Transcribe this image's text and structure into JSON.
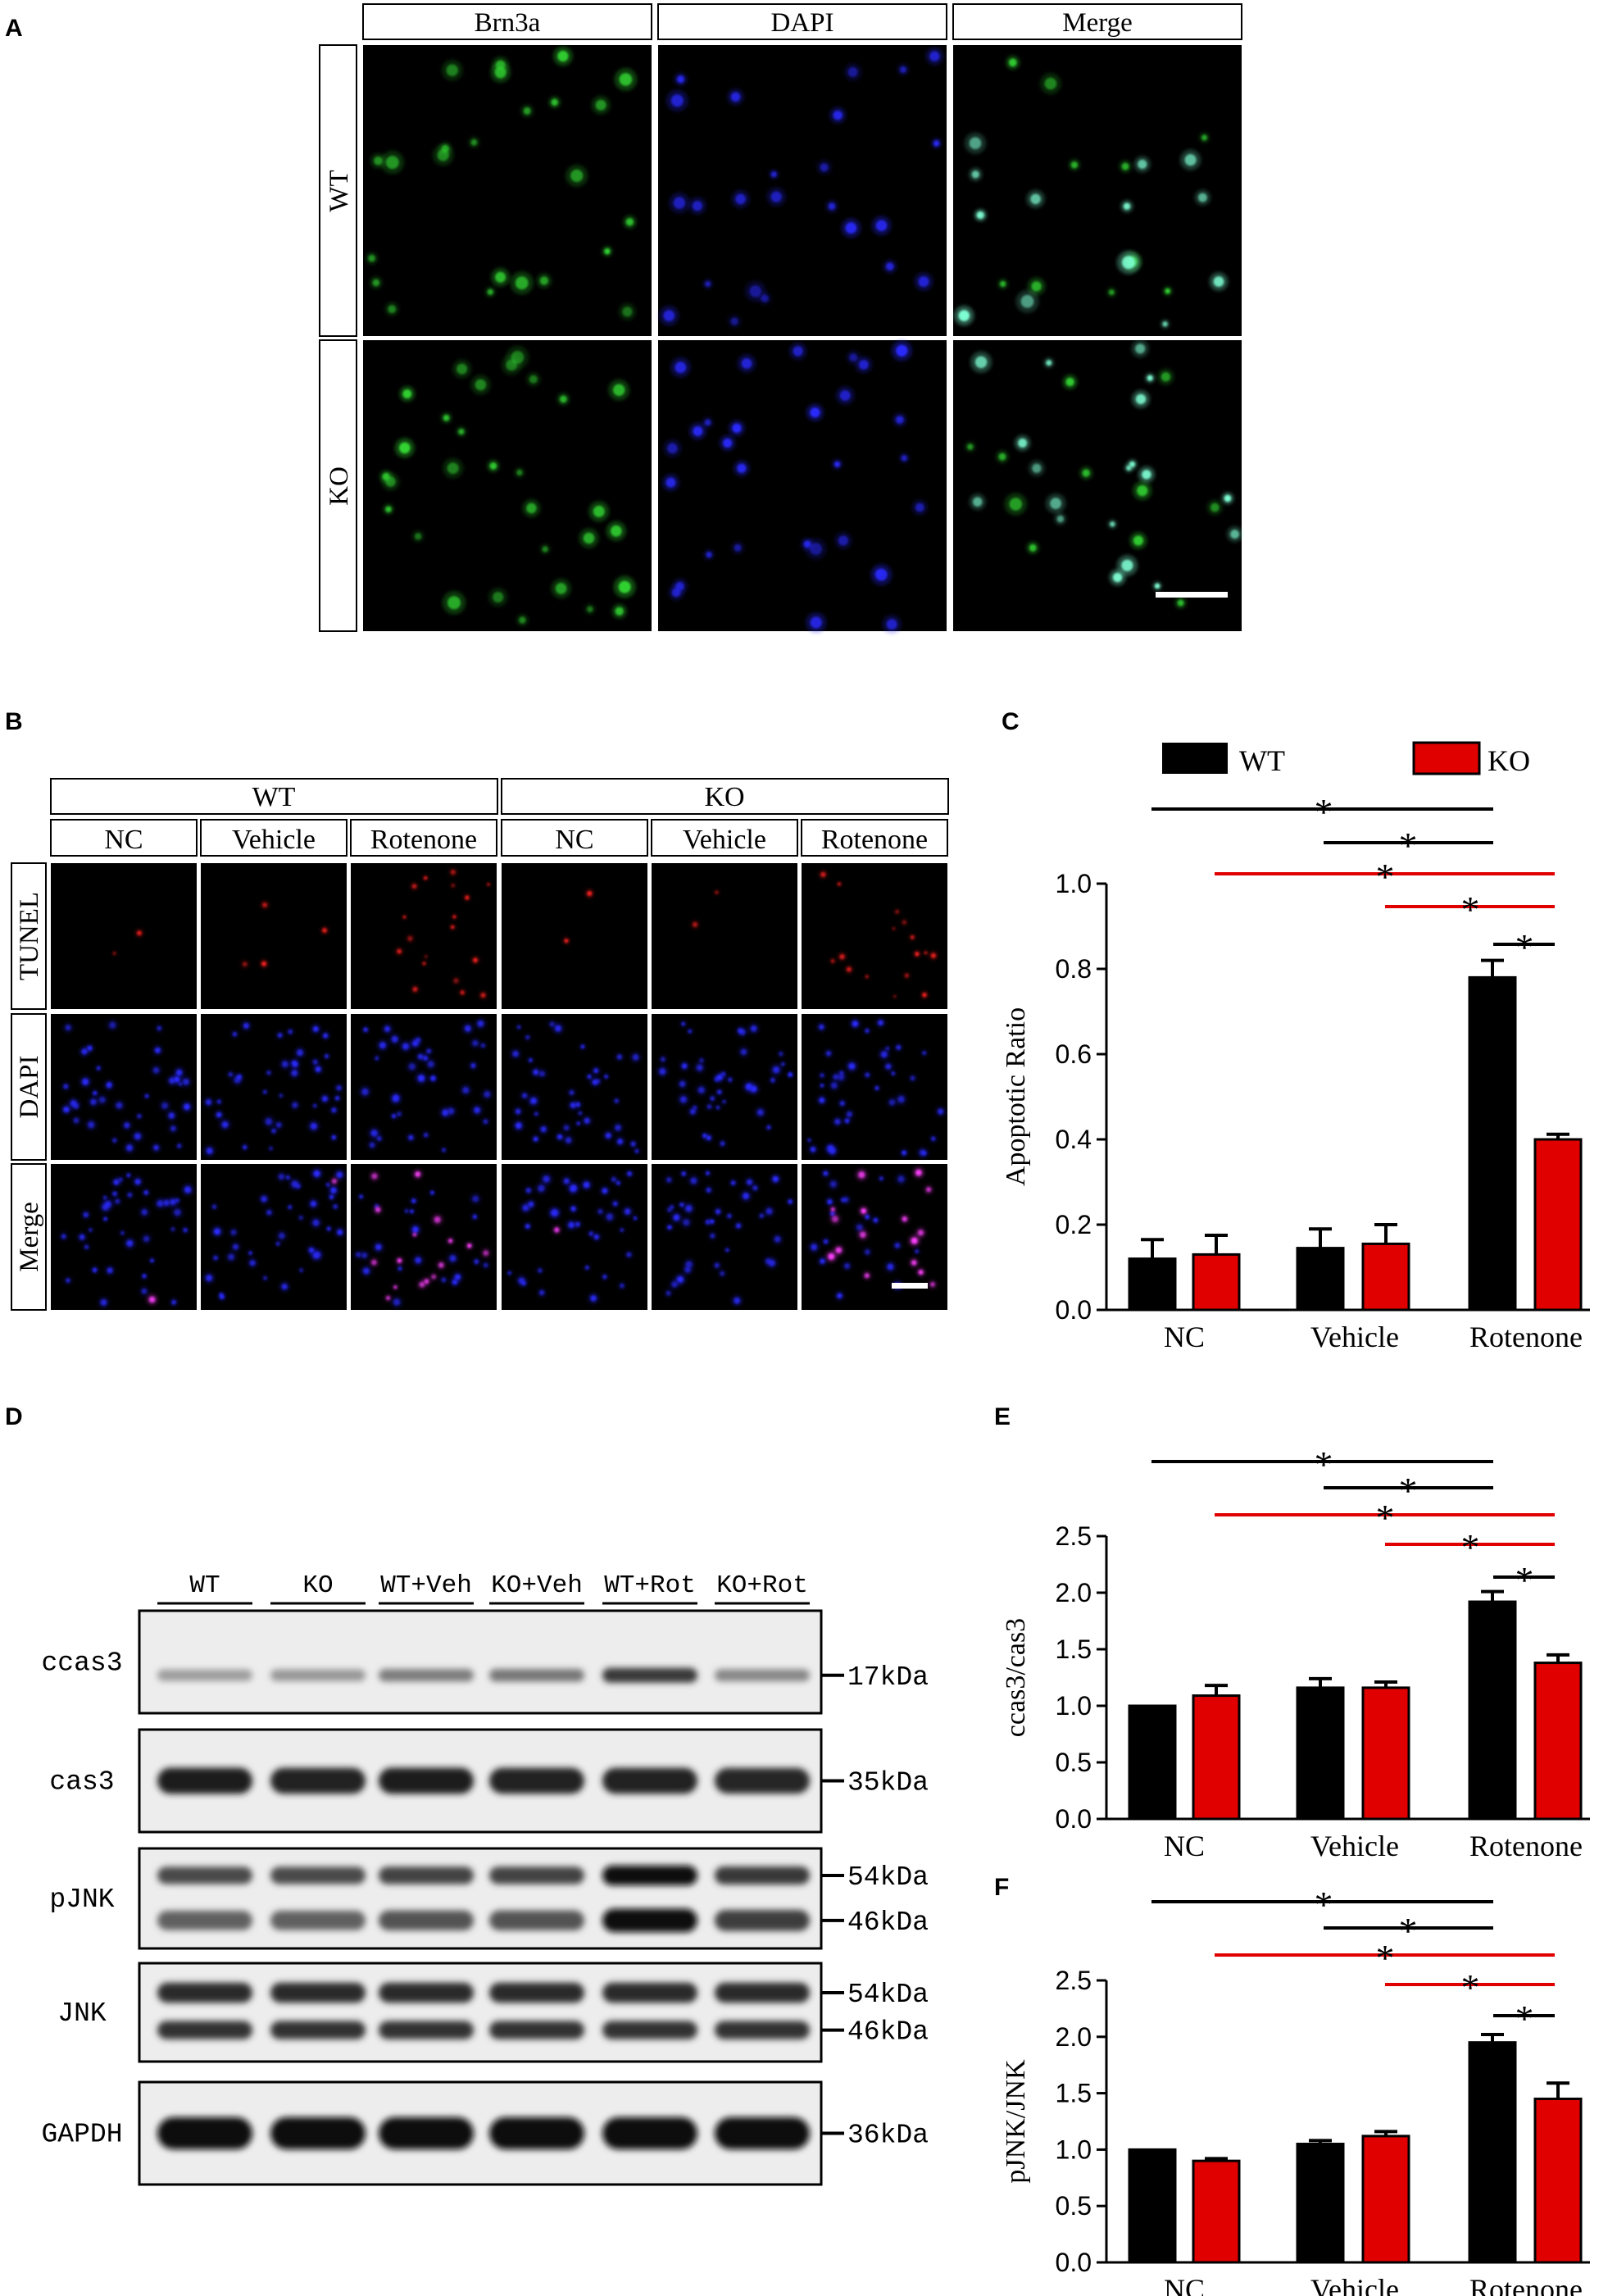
{
  "panel_letters": {
    "A": "A",
    "B": "B",
    "C": "C",
    "D": "D",
    "E": "E",
    "F": "F"
  },
  "colors": {
    "wt": "#000000",
    "ko": "#e00000",
    "green_stain": "#32d232",
    "blue_stain": "#2a2aff",
    "red_stain": "#ff2020",
    "cyan_merge": "#7fffd4",
    "magenta_merge": "#ff40ff",
    "scale_bar": "#ffffff"
  },
  "panel_a": {
    "columns": [
      "Brn3a",
      "DAPI",
      "Merge"
    ],
    "rows": [
      "WT",
      "KO"
    ]
  },
  "panel_b": {
    "groups": [
      "WT",
      "KO"
    ],
    "conditions": [
      "NC",
      "Vehicle",
      "Rotenone",
      "NC",
      "Vehicle",
      "Rotenone"
    ],
    "rows": [
      "TUNEL",
      "DAPI",
      "Merge"
    ]
  },
  "panel_d": {
    "lanes": [
      "WT",
      "KO",
      "WT+Veh",
      "KO+Veh",
      "WT+Rot",
      "KO+Rot"
    ],
    "blots": [
      {
        "label": "ccas3",
        "markers": [
          "17kDa"
        ]
      },
      {
        "label": "cas3",
        "markers": [
          "35kDa"
        ]
      },
      {
        "label": "pJNK",
        "markers": [
          "54kDa",
          "46kDa"
        ]
      },
      {
        "label": "JNK",
        "markers": [
          "54kDa",
          "46kDa"
        ]
      },
      {
        "label": "GAPDH",
        "markers": [
          "36kDa"
        ]
      }
    ],
    "band_intensity": {
      "ccas3": [
        0.35,
        0.38,
        0.5,
        0.52,
        0.8,
        0.45
      ],
      "cas3": [
        0.92,
        0.9,
        0.92,
        0.9,
        0.9,
        0.88
      ],
      "pJNK_upper": [
        0.72,
        0.72,
        0.75,
        0.75,
        1.0,
        0.8
      ],
      "pJNK_lower": [
        0.62,
        0.62,
        0.68,
        0.68,
        1.0,
        0.78
      ],
      "JNK_upper": [
        0.85,
        0.85,
        0.85,
        0.85,
        0.85,
        0.85
      ],
      "JNK_lower": [
        0.82,
        0.82,
        0.82,
        0.82,
        0.82,
        0.82
      ],
      "GAPDH": [
        0.98,
        0.98,
        0.98,
        0.98,
        0.98,
        0.98
      ]
    }
  },
  "legend": {
    "wt": "WT",
    "ko": "KO"
  },
  "significance_mark": "*",
  "chart_data": [
    {
      "panel": "C",
      "type": "bar",
      "categories": [
        "NC",
        "Vehicle",
        "Rotenone"
      ],
      "ylabel": "Apoptotic Ratio",
      "xlabel": "",
      "ylim": [
        0,
        1.0
      ],
      "yticks": [
        "0.0",
        "0.2",
        "0.4",
        "0.6",
        "0.8",
        "1.0"
      ],
      "series": [
        {
          "name": "WT",
          "values": [
            0.12,
            0.145,
            0.78
          ],
          "errors": [
            0.045,
            0.045,
            0.04
          ]
        },
        {
          "name": "KO",
          "values": [
            0.13,
            0.155,
            0.4
          ],
          "errors": [
            0.045,
            0.045,
            0.012
          ]
        }
      ]
    },
    {
      "panel": "E",
      "type": "bar",
      "categories": [
        "NC",
        "Vehicle",
        "Rotenone"
      ],
      "ylabel": "ccas3/cas3",
      "xlabel": "",
      "ylim": [
        0,
        2.5
      ],
      "yticks": [
        "0.0",
        "0.5",
        "1.0",
        "1.5",
        "2.0",
        "2.5"
      ],
      "series": [
        {
          "name": "WT",
          "values": [
            1.0,
            1.16,
            1.92
          ],
          "errors": [
            0.0,
            0.08,
            0.09
          ]
        },
        {
          "name": "KO",
          "values": [
            1.09,
            1.16,
            1.38
          ],
          "errors": [
            0.09,
            0.05,
            0.07
          ]
        }
      ]
    },
    {
      "panel": "F",
      "type": "bar",
      "categories": [
        "NC",
        "Vehicle",
        "Rotenone"
      ],
      "ylabel": "pJNK/JNK",
      "xlabel": "",
      "ylim": [
        0,
        2.5
      ],
      "yticks": [
        "0.0",
        "0.5",
        "1.0",
        "1.5",
        "2.0",
        "2.5"
      ],
      "series": [
        {
          "name": "WT",
          "values": [
            1.0,
            1.05,
            1.95
          ],
          "errors": [
            0.0,
            0.03,
            0.07
          ]
        },
        {
          "name": "KO",
          "values": [
            0.9,
            1.12,
            1.45
          ],
          "errors": [
            0.02,
            0.04,
            0.14
          ]
        }
      ]
    }
  ]
}
